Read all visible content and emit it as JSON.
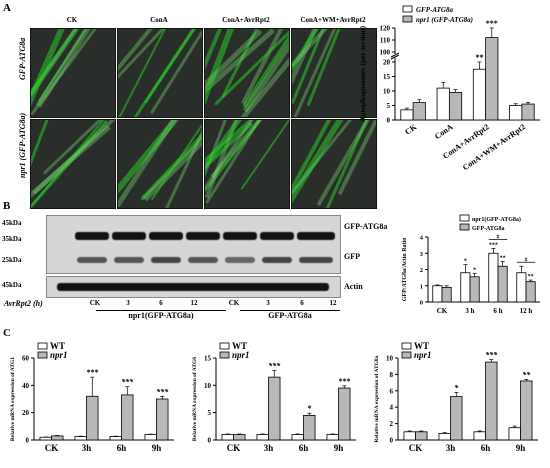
{
  "panel_a": {
    "letter": "A",
    "columns": [
      "CK",
      "ConA",
      "ConA+AvrRpt2",
      "ConA+WM+AvrRpt2"
    ],
    "rows": [
      "GFP-ATG8a",
      "npr1 (GFP-ATG8a)"
    ]
  },
  "panel_b": {
    "letter": "B",
    "kda_top": [
      "45kDa",
      "35kDa",
      "25kDa"
    ],
    "kda_bottom": "45kDa",
    "band_labels": [
      "GFP-ATG8a",
      "GFP",
      "Actin"
    ],
    "x_title": "AvrRpt2 (h)",
    "lanes": [
      "CK",
      "3",
      "6",
      "12",
      "CK",
      "3",
      "6",
      "12"
    ],
    "groups": [
      "npr1(GFP-ATG8a)",
      "GFP-ATG8a"
    ]
  },
  "panel_c": {
    "letter": "C"
  },
  "colors": {
    "white_bar": "#ffffff",
    "gray_bar": "#b8b8b8",
    "fluor": "#33cc33"
  },
  "chart_data": [
    {
      "type": "bar",
      "id": "autophagosomes",
      "categories": [
        "CK",
        "ConA",
        "ConA+AvrRpt2",
        "ConA+WM+AvrRpt2"
      ],
      "series": [
        {
          "name": "GFP-ATG8a",
          "values": [
            3.5,
            11,
            17.5,
            5
          ],
          "errors": [
            0.6,
            2,
            2.5,
            0.6
          ]
        },
        {
          "name": "npr1 (GFP-ATG8a)",
          "values": [
            6,
            9.5,
            112,
            5.5
          ],
          "errors": [
            1,
            1,
            8,
            0.6
          ]
        }
      ],
      "ylabel": "Autophagosomes (per section)",
      "yticks_low": [
        "0",
        "5",
        "10",
        "15",
        "20"
      ],
      "yticks_high": [
        "100",
        "110",
        "120"
      ],
      "break": [
        22,
        95
      ],
      "annotations": [
        "**",
        "***"
      ]
    },
    {
      "type": "bar",
      "id": "ratio",
      "categories": [
        "CK",
        "3 h",
        "6 h",
        "12 h"
      ],
      "series": [
        {
          "name": "npr1(GFP-ATG8a)",
          "values": [
            1.0,
            1.8,
            3.0,
            1.8
          ],
          "errors": [
            0.05,
            0.5,
            0.3,
            0.4
          ]
        },
        {
          "name": "GFP-ATG8a",
          "values": [
            0.9,
            1.55,
            2.2,
            1.25
          ],
          "errors": [
            0.1,
            0.2,
            0.3,
            0.1
          ]
        }
      ],
      "ylabel": "GFP/ATG8a/Actin Ratio",
      "yticks": [
        "0",
        "1",
        "2",
        "3",
        "4"
      ],
      "ylim": [
        0,
        4
      ],
      "legend": "top-right",
      "annotations": [
        "*",
        "*",
        "***",
        "**",
        "**",
        "#",
        "#"
      ]
    },
    {
      "type": "bar",
      "id": "atg1",
      "categories": [
        "CK",
        "3h",
        "6h",
        "9h"
      ],
      "series": [
        {
          "name": "WT",
          "values": [
            2,
            2.5,
            2.5,
            4
          ],
          "errors": [
            0.2,
            0.3,
            0.3,
            0.3
          ]
        },
        {
          "name": "npr1",
          "values": [
            3,
            32,
            33,
            30
          ],
          "errors": [
            0.3,
            14,
            6,
            2
          ]
        }
      ],
      "ylabel": "Relative mRNA expression of ATG1",
      "yticks": [
        "0",
        "20",
        "40",
        "60"
      ],
      "ylim": [
        0,
        60
      ],
      "annotations": [
        "***",
        "***",
        "***"
      ]
    },
    {
      "type": "bar",
      "id": "atg6",
      "categories": [
        "CK",
        "3h",
        "6h",
        "9h"
      ],
      "series": [
        {
          "name": "WT",
          "values": [
            1,
            1,
            1,
            1
          ],
          "errors": [
            0.1,
            0.1,
            0.1,
            0.1
          ]
        },
        {
          "name": "npr1",
          "values": [
            1,
            11.5,
            4.5,
            9.5
          ],
          "errors": [
            0.1,
            1.2,
            0.4,
            0.4
          ]
        }
      ],
      "ylabel": "Relative mRNA expression of ATG6",
      "yticks": [
        "0",
        "5",
        "10",
        "15"
      ],
      "ylim": [
        0,
        15
      ],
      "annotations": [
        "***",
        "*",
        "***"
      ]
    },
    {
      "type": "bar",
      "id": "atg8a",
      "categories": [
        "CK",
        "3h",
        "6h",
        "9h"
      ],
      "series": [
        {
          "name": "WT",
          "values": [
            1,
            0.8,
            1,
            1.5
          ],
          "errors": [
            0.1,
            0.1,
            0.1,
            0.2
          ]
        },
        {
          "name": "npr1",
          "values": [
            1,
            5.3,
            9.5,
            7.2
          ],
          "errors": [
            0.1,
            0.5,
            0.3,
            0.2
          ]
        }
      ],
      "ylabel": "Relative mRNA expression of ATG8a",
      "yticks": [
        "0",
        "2",
        "4",
        "6",
        "8",
        "10"
      ],
      "ylim": [
        0,
        10
      ],
      "annotations": [
        "*",
        "***",
        "**"
      ]
    }
  ]
}
